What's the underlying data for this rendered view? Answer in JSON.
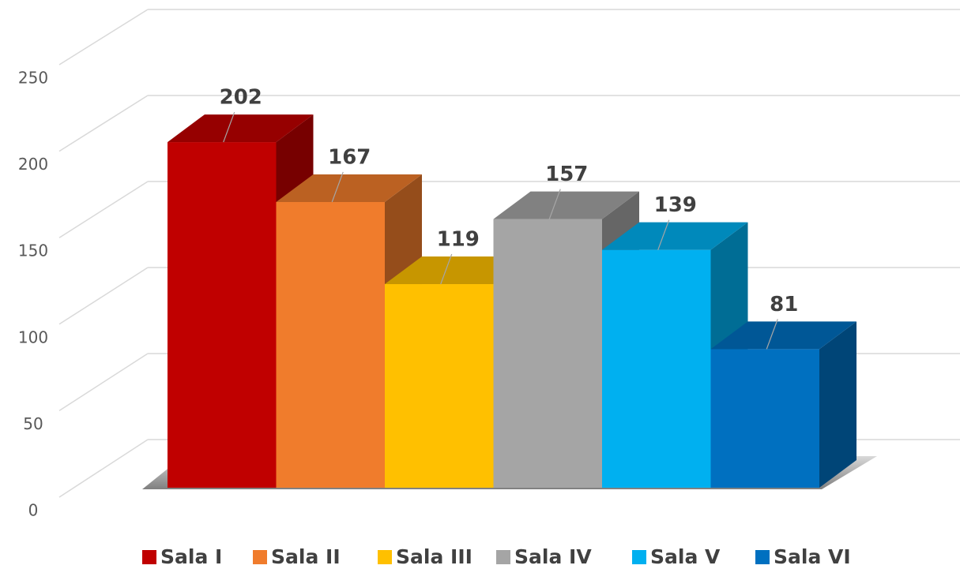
{
  "chart_data": {
    "type": "bar3d",
    "series": [
      {
        "name": "Sala I",
        "color": "#c00000",
        "values": [
          202
        ]
      },
      {
        "name": "Sala II",
        "color": "#f07c2c",
        "values": [
          167
        ]
      },
      {
        "name": "Sala III",
        "color": "#ffc000",
        "values": [
          119
        ]
      },
      {
        "name": "Sala IV",
        "color": "#a5a5a5",
        "values": [
          157
        ]
      },
      {
        "name": "Sala V",
        "color": "#00b0f0",
        "values": [
          139
        ]
      },
      {
        "name": "Sala VI",
        "color": "#0070c0",
        "values": [
          81
        ]
      }
    ],
    "ylim": [
      0,
      250
    ],
    "yticks": [
      0,
      50,
      100,
      150,
      200,
      250
    ],
    "grid": true,
    "legend": "bottom"
  }
}
